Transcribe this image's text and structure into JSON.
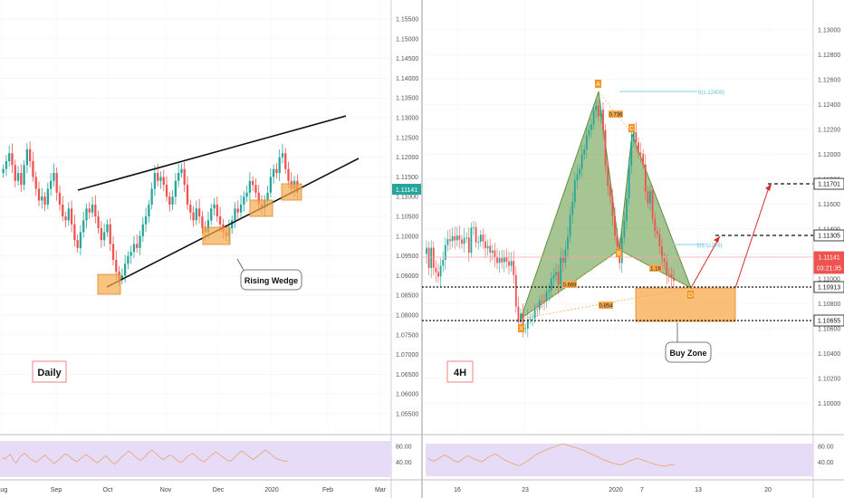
{
  "chart_data": [
    {
      "type": "candlestick",
      "timeframe": "Daily",
      "annotation": "Rising Wedge",
      "x_ticks": [
        "Aug",
        "Sep",
        "Oct",
        "Nov",
        "Dec",
        "2020",
        "Feb",
        "Mar"
      ],
      "y_ticks": [
        "1.15500",
        "1.15000",
        "1.14500",
        "1.14000",
        "1.13500",
        "1.13000",
        "1.12500",
        "1.12000",
        "1.11500",
        "1.11000",
        "1.10500",
        "1.10000",
        "1.09500",
        "1.09000",
        "1.08500",
        "1.08000",
        "1.07500",
        "1.07000",
        "1.06500",
        "1.06000",
        "1.05500"
      ],
      "ylim": [
        1.052,
        1.158
      ],
      "last_price": "1.11141",
      "wedge_upper": [
        [
          1.1108,
          1.1288
        ]
      ],
      "wedge_lower": [
        [
          1.0875,
          1.1182
        ]
      ],
      "closes": [
        1.117,
        1.119,
        1.121,
        1.118,
        1.114,
        1.116,
        1.113,
        1.118,
        1.122,
        1.119,
        1.115,
        1.112,
        1.109,
        1.11,
        1.108,
        1.112,
        1.114,
        1.116,
        1.111,
        1.108,
        1.105,
        1.104,
        1.107,
        1.103,
        1.099,
        1.097,
        1.101,
        1.104,
        1.107,
        1.106,
        1.108,
        1.105,
        1.102,
        1.099,
        1.101,
        1.103,
        1.098,
        1.094,
        1.091,
        1.089,
        1.09,
        1.093,
        1.095,
        1.096,
        1.098,
        1.097,
        1.1,
        1.103,
        1.105,
        1.108,
        1.112,
        1.116,
        1.114,
        1.115,
        1.113,
        1.11,
        1.108,
        1.11,
        1.114,
        1.116,
        1.117,
        1.113,
        1.108,
        1.106,
        1.104,
        1.107,
        1.105,
        1.102,
        1.101,
        1.104,
        1.107,
        1.108,
        1.105,
        1.103,
        1.101,
        1.1,
        1.102,
        1.104,
        1.107,
        1.106,
        1.108,
        1.11,
        1.111,
        1.114,
        1.113,
        1.111,
        1.108,
        1.107,
        1.109,
        1.111,
        1.115,
        1.117,
        1.116,
        1.12,
        1.121,
        1.117,
        1.114,
        1.112,
        1.114,
        1.111
      ],
      "rsi_ticks": [
        "80.00",
        "40.00"
      ],
      "rsi": [
        52,
        48,
        55,
        60,
        44,
        38,
        50,
        58,
        62,
        55,
        47,
        43,
        40,
        46,
        52,
        58,
        50,
        44,
        36,
        42,
        48,
        55,
        61,
        57,
        50,
        45,
        41,
        47,
        53,
        59,
        55,
        49,
        43,
        38,
        44,
        50,
        56,
        48,
        40,
        35,
        42,
        49,
        56,
        63,
        68,
        62,
        55,
        49,
        44,
        50,
        58,
        65,
        70,
        64,
        57,
        50,
        46,
        52,
        58,
        55,
        49,
        43,
        39,
        45,
        52,
        58,
        62,
        56,
        49,
        44,
        41,
        47,
        54,
        60,
        66,
        61,
        55,
        50,
        45,
        42,
        48,
        55,
        62,
        68,
        63,
        57,
        51,
        47,
        52,
        58,
        64,
        70,
        67,
        60,
        54,
        49,
        46,
        44,
        42,
        43
      ]
    },
    {
      "type": "candlestick",
      "timeframe": "4H",
      "pattern": "Harmonic (X, A, B, C, D)",
      "annotation": "Buy Zone",
      "x_ticks": [
        "16",
        "23",
        "2020",
        "7",
        "13",
        "20"
      ],
      "y_ticks": [
        "1.13000",
        "1.12800",
        "1.12600",
        "1.12400",
        "1.12200",
        "1.12000",
        "1.11800",
        "1.11600",
        "1.11400",
        "1.11200",
        "1.11000",
        "1.10800",
        "1.10600",
        "1.10400",
        "1.10200",
        "1.10000"
      ],
      "ylim": [
        1.0982,
        1.1318
      ],
      "points": {
        "X": "X",
        "A": "A",
        "B": "B",
        "C": "C",
        "D": "D"
      },
      "fib_labels": [
        "0.736",
        "0.669",
        "0.854",
        "1.16",
        "0(1.12400)",
        "1(1.11305)"
      ],
      "levels": [
        {
          "label": "1.11701",
          "value": 1.11701
        },
        {
          "label": "1.11305",
          "value": 1.11305
        },
        {
          "label": "1.11141",
          "value": 1.11141
        },
        {
          "label": "03:21:35",
          "value": 1.1101
        },
        {
          "label": "1.10913",
          "value": 1.10913
        },
        {
          "label": "1.10655",
          "value": 1.10655
        }
      ],
      "rsi_ticks": [
        "80.00",
        "40.00"
      ],
      "rsi": [
        50,
        46,
        42,
        47,
        53,
        58,
        54,
        48,
        43,
        40,
        45,
        51,
        56,
        52,
        47,
        44,
        41,
        46,
        52,
        57,
        61,
        56,
        50,
        45,
        41,
        37,
        34,
        31,
        35,
        40,
        46,
        52,
        58,
        63,
        67,
        71,
        74,
        77,
        80,
        83,
        86,
        84,
        81,
        78,
        76,
        73,
        70,
        66,
        62,
        58,
        54,
        50,
        46,
        43,
        40,
        37,
        35,
        33,
        36,
        40,
        44,
        47,
        50,
        47,
        44,
        41,
        38,
        35,
        33,
        31,
        30,
        32,
        34,
        33
      ]
    }
  ],
  "labels": {
    "daily": "Daily",
    "fourh": "4H",
    "rising_wedge": "Rising Wedge",
    "buy_zone": "Buy Zone"
  },
  "colors": {
    "up": "#26a69a",
    "down": "#ef5350",
    "pattern_fill": "#6b9e4a",
    "zone": "#f7a94b",
    "rsi_band": "#e6dcf7",
    "rsi_line": "#e8a87c",
    "arrow": "#d32f2f"
  }
}
